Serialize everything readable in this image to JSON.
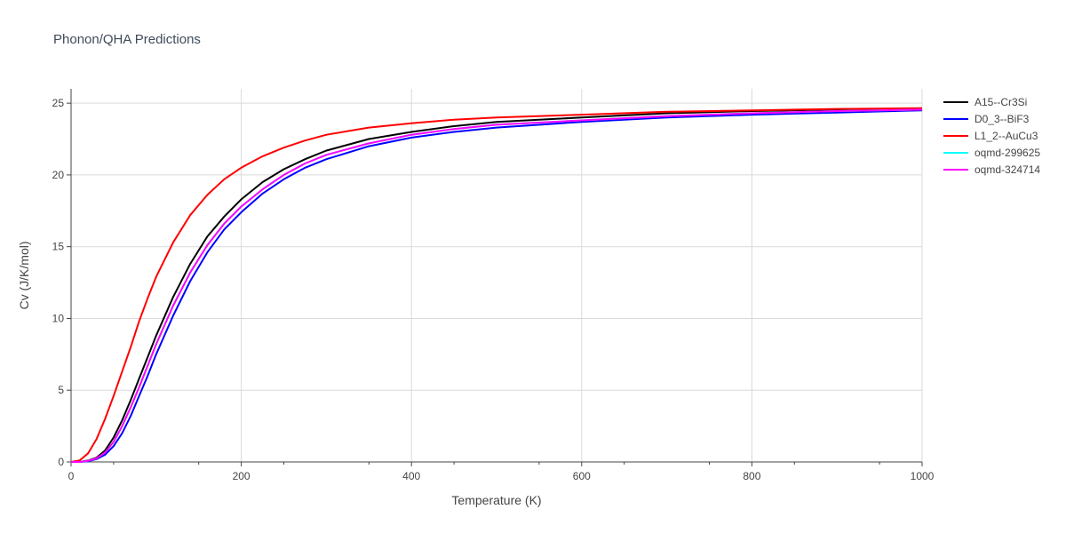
{
  "title": "Phonon/QHA Predictions",
  "chart_data": {
    "type": "line",
    "title": "Phonon/QHA Predictions",
    "xlabel": "Temperature (K)",
    "ylabel": "Cv (J/K/mol)",
    "xlim": [
      0,
      1000
    ],
    "ylim": [
      0,
      26
    ],
    "xticks": [
      0,
      200,
      400,
      600,
      800,
      1000
    ],
    "yticks": [
      0,
      5,
      10,
      15,
      20,
      25
    ],
    "grid": true,
    "legend_position": "right",
    "x": [
      0,
      10,
      20,
      30,
      40,
      50,
      60,
      70,
      80,
      90,
      100,
      120,
      140,
      160,
      180,
      200,
      225,
      250,
      275,
      300,
      350,
      400,
      450,
      500,
      600,
      700,
      800,
      900,
      1000
    ],
    "series": [
      {
        "name": "A15--Cr3Si",
        "color": "#000000",
        "values": [
          0,
          0,
          0.1,
          0.3,
          0.8,
          1.7,
          2.9,
          4.3,
          5.8,
          7.3,
          8.8,
          11.5,
          13.8,
          15.7,
          17.1,
          18.3,
          19.5,
          20.4,
          21.1,
          21.7,
          22.5,
          23.0,
          23.4,
          23.7,
          24.0,
          24.3,
          24.45,
          24.55,
          24.6
        ]
      },
      {
        "name": "D0_3--BiF3",
        "color": "#0000ff",
        "values": [
          0,
          0,
          0.05,
          0.2,
          0.5,
          1.1,
          2.0,
          3.2,
          4.6,
          6.0,
          7.5,
          10.2,
          12.6,
          14.6,
          16.2,
          17.4,
          18.7,
          19.7,
          20.5,
          21.1,
          22.0,
          22.6,
          23.0,
          23.3,
          23.7,
          24.0,
          24.2,
          24.35,
          24.5
        ]
      },
      {
        "name": "L1_2--AuCu3",
        "color": "#ff0000",
        "values": [
          0,
          0.1,
          0.6,
          1.6,
          3.0,
          4.6,
          6.3,
          8.0,
          9.8,
          11.4,
          12.9,
          15.3,
          17.2,
          18.6,
          19.7,
          20.5,
          21.3,
          21.9,
          22.4,
          22.8,
          23.3,
          23.6,
          23.85,
          24.0,
          24.2,
          24.4,
          24.5,
          24.6,
          24.65
        ]
      },
      {
        "name": "oqmd-299625",
        "color": "#00ffff",
        "values": [
          0,
          0,
          0.08,
          0.25,
          0.65,
          1.4,
          2.5,
          3.8,
          5.2,
          6.7,
          8.2,
          10.9,
          13.2,
          15.1,
          16.6,
          17.8,
          19.0,
          20.0,
          20.8,
          21.4,
          22.2,
          22.8,
          23.2,
          23.5,
          23.8,
          24.1,
          24.3,
          24.45,
          24.55
        ]
      },
      {
        "name": "oqmd-324714",
        "color": "#ff00ff",
        "values": [
          0,
          0,
          0.08,
          0.25,
          0.65,
          1.4,
          2.5,
          3.8,
          5.2,
          6.7,
          8.2,
          10.9,
          13.2,
          15.1,
          16.6,
          17.8,
          19.0,
          20.0,
          20.8,
          21.4,
          22.2,
          22.8,
          23.2,
          23.5,
          23.8,
          24.1,
          24.3,
          24.45,
          24.55
        ]
      }
    ]
  }
}
